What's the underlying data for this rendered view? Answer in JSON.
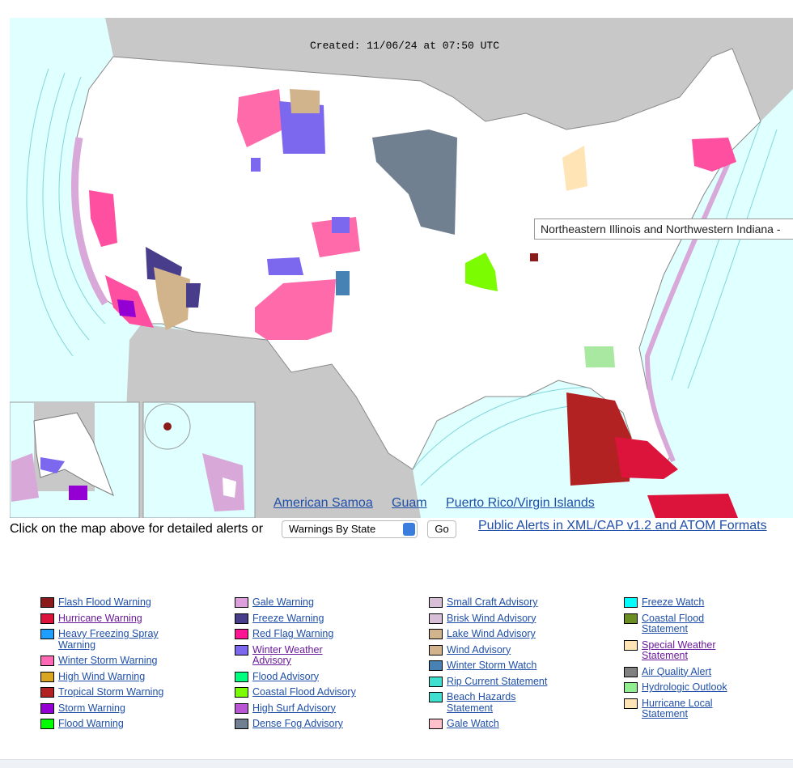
{
  "header": {
    "created": "Created: 11/06/24 at 07:50 UTC"
  },
  "tooltip": "Northeastern Illinois and Northwestern Indiana -",
  "map_links": [
    "American Samoa",
    "Guam",
    "Puerto Rico/Virgin Islands"
  ],
  "controls": {
    "prompt": "Click on the map above for detailed alerts or",
    "select": "Warnings By State",
    "button": "Go",
    "feed_link": "Public Alerts in XML/CAP v1.2 and ATOM Formats"
  },
  "legend": [
    [
      {
        "label": "Flash Flood Warning",
        "color": "#8b1a1a"
      },
      {
        "label": "Hurricane Warning",
        "color": "#dc143c"
      },
      {
        "label": "Heavy Freezing Spray Warning",
        "color": "#1e9fff"
      },
      {
        "label": "Winter Storm Warning",
        "color": "#ff69b4"
      },
      {
        "label": "High Wind Warning",
        "color": "#daa520"
      },
      {
        "label": "Tropical Storm Warning",
        "color": "#b22222"
      },
      {
        "label": "Storm Warning",
        "color": "#9400d3"
      },
      {
        "label": "Flood Warning",
        "color": "#00ff00"
      }
    ],
    [
      {
        "label": "Gale Warning",
        "color": "#dda0dd"
      },
      {
        "label": "Freeze Warning",
        "color": "#483d8b"
      },
      {
        "label": "Red Flag Warning",
        "color": "#ff1493"
      },
      {
        "label": "Winter Weather Advisory",
        "color": "#7b68ee"
      },
      {
        "label": "Flood Advisory",
        "color": "#00ff7f"
      },
      {
        "label": "Coastal Flood Advisory",
        "color": "#7cfc00"
      },
      {
        "label": "High Surf Advisory",
        "color": "#ba55d3"
      },
      {
        "label": "Dense Fog Advisory",
        "color": "#708090"
      }
    ],
    [
      {
        "label": "Small Craft Advisory",
        "color": "#d8bfd8"
      },
      {
        "label": "Brisk Wind Advisory",
        "color": "#d8bfd8"
      },
      {
        "label": "Lake Wind Advisory",
        "color": "#d2b48c"
      },
      {
        "label": "Wind Advisory",
        "color": "#d2b48c"
      },
      {
        "label": "Winter Storm Watch",
        "color": "#4682b4"
      },
      {
        "label": "Rip Current Statement",
        "color": "#40e0d0"
      },
      {
        "label": "Beach Hazards Statement",
        "color": "#40e0d0"
      },
      {
        "label": "Gale Watch",
        "color": "#ffc0cb"
      }
    ],
    [
      {
        "label": "Freeze Watch",
        "color": "#00ffff"
      },
      {
        "label": "Coastal Flood Statement",
        "color": "#6b8e23"
      },
      {
        "label": "Special Weather Statement",
        "color": "#ffe4b5"
      },
      {
        "label": "Air Quality Alert",
        "color": "#808080"
      },
      {
        "label": "Hydrologic Outlook",
        "color": "#90ee90"
      },
      {
        "label": "Hurricane Local Statement",
        "color": "#ffe4b5"
      }
    ]
  ]
}
